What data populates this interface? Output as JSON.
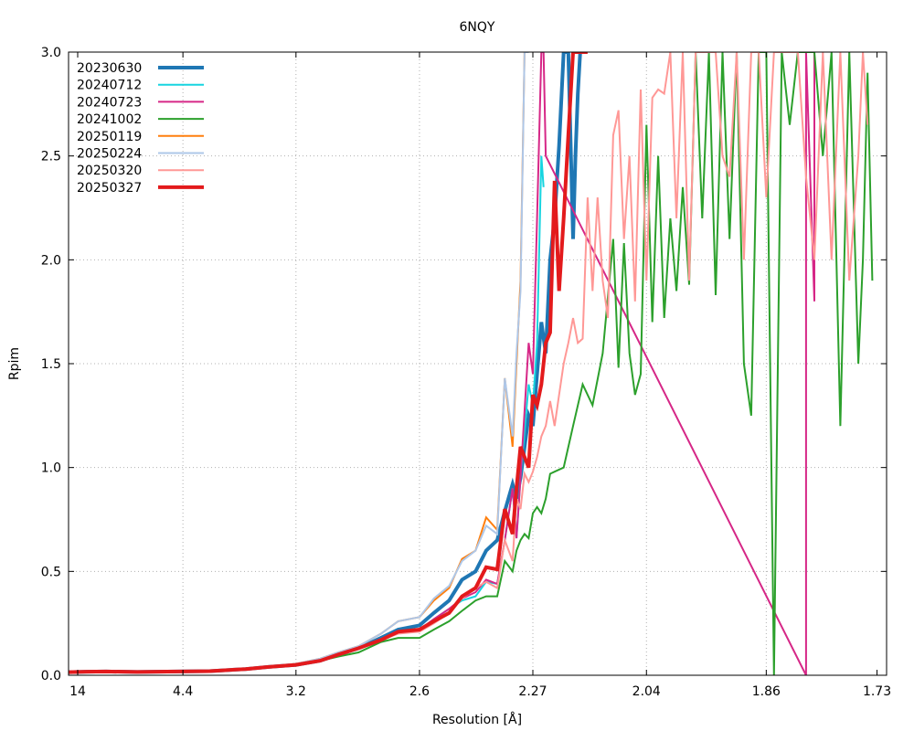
{
  "chart_data": {
    "type": "line",
    "title": "6NQY",
    "xlabel": "Resolution [Å]",
    "ylabel": "Rpim",
    "ylim": [
      0,
      3.0
    ],
    "x_scale": "reciprocal-square",
    "xlim": [
      14,
      1.72
    ],
    "x_ticks": [
      "14",
      "4.4",
      "3.2",
      "2.6",
      "2.27",
      "2.04",
      "1.86",
      "1.73"
    ],
    "y_ticks": [
      "0.0",
      "0.5",
      "1.0",
      "1.5",
      "2.0",
      "2.5",
      "3.0"
    ],
    "grid": true,
    "legend_position": "top-left",
    "series": [
      {
        "name": "20230630",
        "color": "#1f77b4",
        "width": 4,
        "x": [
          14,
          9,
          7,
          5.5,
          4.5,
          4,
          3.6,
          3.4,
          3.2,
          3.05,
          2.95,
          2.85,
          2.75,
          2.68,
          2.6,
          2.55,
          2.5,
          2.46,
          2.42,
          2.39,
          2.36,
          2.34,
          2.32,
          2.31,
          2.3,
          2.28,
          2.27,
          2.26,
          2.25,
          2.24,
          2.23,
          2.22,
          2.21,
          2.2,
          2.19,
          2.18,
          2.175,
          2.17,
          2.165,
          2.16
        ],
        "y": [
          0.015,
          0.017,
          0.018,
          0.016,
          0.018,
          0.02,
          0.03,
          0.04,
          0.05,
          0.07,
          0.1,
          0.13,
          0.18,
          0.22,
          0.24,
          0.3,
          0.36,
          0.46,
          0.5,
          0.6,
          0.65,
          0.79,
          0.92,
          0.85,
          0.95,
          1.25,
          1.2,
          1.45,
          1.7,
          1.55,
          2.0,
          2.2,
          2.55,
          3.0,
          3.0,
          2.1,
          2.5,
          2.8,
          3.0,
          3.0
        ]
      },
      {
        "name": "20240712",
        "color": "#17d4e0",
        "width": 2,
        "x": [
          14,
          9,
          7,
          5.5,
          4.5,
          4,
          3.6,
          3.4,
          3.2,
          3.05,
          2.95,
          2.85,
          2.75,
          2.68,
          2.6,
          2.55,
          2.5,
          2.46,
          2.42,
          2.39,
          2.36,
          2.34,
          2.32,
          2.31,
          2.3,
          2.28,
          2.27,
          2.26,
          2.25,
          2.245
        ],
        "y": [
          0.015,
          0.017,
          0.018,
          0.016,
          0.018,
          0.02,
          0.03,
          0.04,
          0.05,
          0.07,
          0.1,
          0.13,
          0.17,
          0.21,
          0.22,
          0.27,
          0.32,
          0.36,
          0.38,
          0.45,
          0.44,
          0.65,
          0.9,
          0.66,
          0.95,
          1.4,
          1.3,
          1.6,
          2.5,
          2.35
        ]
      },
      {
        "name": "20240723",
        "color": "#d62787",
        "width": 2,
        "x": [
          14,
          9,
          7,
          5.5,
          4.5,
          4,
          3.6,
          3.4,
          3.2,
          3.05,
          2.95,
          2.85,
          2.75,
          2.68,
          2.6,
          2.55,
          2.5,
          2.46,
          2.42,
          2.39,
          2.36,
          2.34,
          2.32,
          2.31,
          2.3,
          2.28,
          2.27,
          2.26,
          2.25,
          2.245,
          2.24,
          1.81,
          1.81,
          1.8,
          1.8
        ],
        "y": [
          0.015,
          0.017,
          0.018,
          0.016,
          0.018,
          0.02,
          0.03,
          0.04,
          0.05,
          0.07,
          0.1,
          0.13,
          0.17,
          0.21,
          0.22,
          0.27,
          0.32,
          0.37,
          0.4,
          0.46,
          0.44,
          0.65,
          0.9,
          0.66,
          0.95,
          1.6,
          1.45,
          2.2,
          3.0,
          3.0,
          2.5,
          0.0,
          3.0,
          1.8,
          3.0
        ]
      },
      {
        "name": "20241002",
        "color": "#2ca02c",
        "width": 2,
        "x": [
          14,
          9,
          7,
          5.5,
          4.5,
          4,
          3.6,
          3.4,
          3.2,
          3.05,
          2.95,
          2.85,
          2.75,
          2.68,
          2.6,
          2.55,
          2.5,
          2.46,
          2.42,
          2.39,
          2.36,
          2.34,
          2.32,
          2.31,
          2.3,
          2.29,
          2.28,
          2.27,
          2.26,
          2.25,
          2.24,
          2.23,
          2.22,
          2.2,
          2.18,
          2.16,
          2.14,
          2.12,
          2.1,
          2.09,
          2.08,
          2.07,
          2.06,
          2.05,
          2.04,
          2.03,
          2.02,
          2.01,
          2.0,
          1.99,
          1.98,
          1.97,
          1.96,
          1.95,
          1.94,
          1.93,
          1.92,
          1.91,
          1.9,
          1.89,
          1.88,
          1.87,
          1.86,
          1.85,
          1.84,
          1.83,
          1.82,
          1.81,
          1.8,
          1.79,
          1.78,
          1.77,
          1.76,
          1.75,
          1.745,
          1.74,
          1.735
        ],
        "y": [
          0.015,
          0.017,
          0.018,
          0.016,
          0.018,
          0.02,
          0.03,
          0.04,
          0.05,
          0.07,
          0.09,
          0.11,
          0.16,
          0.18,
          0.18,
          0.22,
          0.26,
          0.31,
          0.36,
          0.38,
          0.38,
          0.55,
          0.5,
          0.6,
          0.65,
          0.68,
          0.66,
          0.78,
          0.81,
          0.78,
          0.85,
          0.97,
          0.98,
          1.0,
          1.2,
          1.4,
          1.3,
          1.55,
          2.1,
          1.48,
          2.08,
          1.55,
          1.35,
          1.45,
          2.65,
          1.7,
          2.5,
          1.72,
          2.2,
          1.85,
          2.35,
          1.88,
          3.0,
          2.2,
          3.0,
          1.83,
          3.0,
          2.1,
          3.0,
          1.5,
          1.25,
          3.0,
          3.0,
          0.0,
          3.0,
          2.65,
          3.0,
          3.0,
          3.0,
          2.5,
          3.0,
          1.2,
          3.0,
          1.5,
          2.0,
          2.9,
          1.9
        ]
      },
      {
        "name": "20250119",
        "color": "#ff7f0e",
        "width": 2,
        "x": [
          14,
          9,
          7,
          5.5,
          4.5,
          4,
          3.6,
          3.4,
          3.2,
          3.05,
          2.95,
          2.85,
          2.75,
          2.68,
          2.6,
          2.55,
          2.5,
          2.46,
          2.42,
          2.39,
          2.36,
          2.34,
          2.32,
          2.31,
          2.3,
          2.29,
          2.285,
          2.28
        ],
        "y": [
          0.015,
          0.017,
          0.018,
          0.016,
          0.018,
          0.02,
          0.03,
          0.04,
          0.055,
          0.08,
          0.11,
          0.14,
          0.2,
          0.26,
          0.28,
          0.36,
          0.42,
          0.56,
          0.6,
          0.76,
          0.7,
          1.43,
          1.1,
          1.5,
          1.9,
          3.0,
          3.0,
          3.0
        ]
      },
      {
        "name": "20250224",
        "color": "#aec7e8",
        "width": 2,
        "x": [
          14,
          9,
          7,
          5.5,
          4.5,
          4,
          3.6,
          3.4,
          3.2,
          3.05,
          2.95,
          2.85,
          2.75,
          2.68,
          2.6,
          2.55,
          2.5,
          2.46,
          2.42,
          2.39,
          2.36,
          2.34,
          2.32,
          2.31,
          2.3,
          2.29,
          2.285,
          2.28
        ],
        "y": [
          0.015,
          0.017,
          0.018,
          0.016,
          0.018,
          0.02,
          0.03,
          0.04,
          0.055,
          0.08,
          0.11,
          0.14,
          0.2,
          0.26,
          0.28,
          0.37,
          0.43,
          0.55,
          0.6,
          0.72,
          0.68,
          1.43,
          1.15,
          1.55,
          1.85,
          3.0,
          3.0,
          3.0
        ]
      },
      {
        "name": "20250320",
        "color": "#ff9896",
        "width": 2,
        "x": [
          14,
          9,
          7,
          5.5,
          4.5,
          4,
          3.6,
          3.4,
          3.2,
          3.05,
          2.95,
          2.85,
          2.75,
          2.68,
          2.6,
          2.55,
          2.5,
          2.46,
          2.42,
          2.39,
          2.36,
          2.34,
          2.32,
          2.31,
          2.3,
          2.29,
          2.28,
          2.27,
          2.26,
          2.25,
          2.24,
          2.23,
          2.22,
          2.21,
          2.2,
          2.19,
          2.18,
          2.17,
          2.16,
          2.15,
          2.14,
          2.13,
          2.12,
          2.11,
          2.1,
          2.09,
          2.08,
          2.07,
          2.06,
          2.05,
          2.04,
          2.03,
          2.02,
          2.01,
          2.0,
          1.99,
          1.98,
          1.97,
          1.96,
          1.95,
          1.94,
          1.93,
          1.92,
          1.91,
          1.9,
          1.89,
          1.88,
          1.87,
          1.86,
          1.85,
          1.84,
          1.83,
          1.82,
          1.81,
          1.8,
          1.79,
          1.78,
          1.77,
          1.76,
          1.75,
          1.745,
          1.74
        ],
        "y": [
          0.015,
          0.017,
          0.018,
          0.016,
          0.018,
          0.02,
          0.03,
          0.04,
          0.05,
          0.07,
          0.1,
          0.13,
          0.17,
          0.2,
          0.21,
          0.25,
          0.3,
          0.37,
          0.42,
          0.45,
          0.42,
          0.65,
          0.55,
          0.85,
          0.8,
          0.97,
          0.93,
          0.98,
          1.05,
          1.15,
          1.2,
          1.32,
          1.2,
          1.35,
          1.5,
          1.6,
          1.72,
          1.6,
          1.62,
          2.3,
          1.85,
          2.3,
          1.9,
          1.72,
          2.6,
          2.72,
          2.1,
          2.5,
          1.8,
          2.82,
          1.9,
          2.78,
          2.82,
          2.8,
          3.0,
          2.2,
          3.0,
          1.9,
          3.0,
          3.0,
          3.0,
          3.0,
          2.5,
          2.4,
          3.0,
          2.0,
          3.0,
          3.0,
          2.3,
          3.0,
          3.0,
          3.0,
          3.0,
          2.4,
          2.0,
          3.0,
          2.0,
          3.0,
          1.9,
          2.5,
          3.0,
          2.65
        ]
      },
      {
        "name": "20250327",
        "color": "#e31a1c",
        "width": 4,
        "x": [
          14,
          9,
          7,
          5.5,
          4.5,
          4,
          3.6,
          3.4,
          3.2,
          3.05,
          2.95,
          2.85,
          2.75,
          2.68,
          2.6,
          2.55,
          2.5,
          2.46,
          2.42,
          2.39,
          2.36,
          2.34,
          2.32,
          2.31,
          2.3,
          2.28,
          2.27,
          2.26,
          2.25,
          2.24,
          2.23,
          2.22,
          2.21,
          2.2,
          2.19,
          2.18,
          2.17,
          2.16,
          2.15
        ],
        "y": [
          0.015,
          0.017,
          0.018,
          0.016,
          0.018,
          0.02,
          0.03,
          0.04,
          0.05,
          0.07,
          0.1,
          0.13,
          0.17,
          0.21,
          0.22,
          0.26,
          0.3,
          0.38,
          0.42,
          0.52,
          0.51,
          0.8,
          0.68,
          0.9,
          1.1,
          1.0,
          1.35,
          1.3,
          1.4,
          1.6,
          1.65,
          2.38,
          1.85,
          2.2,
          2.6,
          3.0,
          3.0,
          3.0,
          3.0
        ]
      }
    ]
  }
}
